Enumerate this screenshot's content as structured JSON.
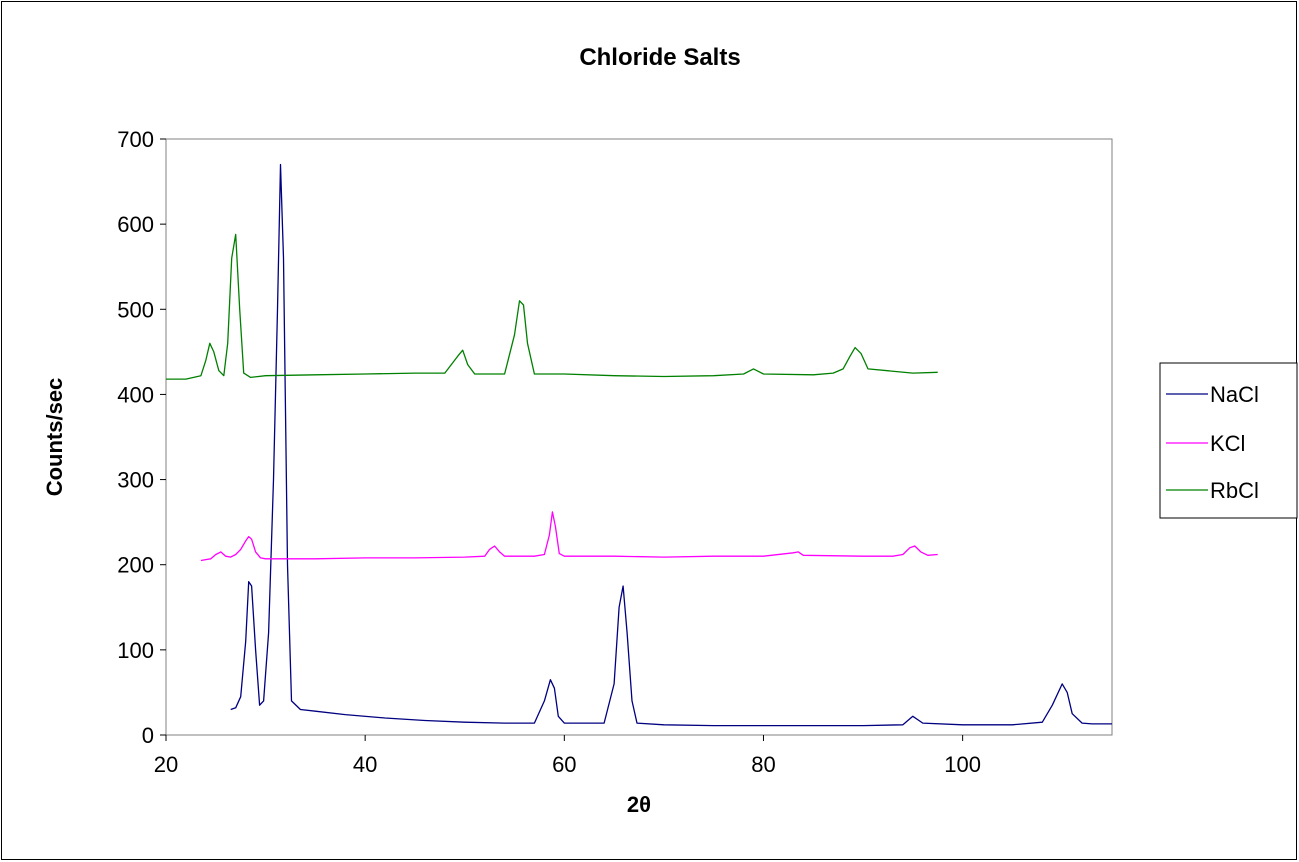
{
  "chart_data": {
    "type": "line",
    "title": "Chloride Salts",
    "xlabel": "2θ",
    "ylabel": "Counts/sec",
    "xlim": [
      20,
      115
    ],
    "ylim": [
      0,
      700
    ],
    "xticks": [
      20,
      40,
      60,
      80,
      100
    ],
    "xtick_labels": [
      "20",
      "40",
      "60",
      "80",
      "100"
    ],
    "yticks": [
      0,
      100,
      200,
      300,
      400,
      500,
      600,
      700
    ],
    "ytick_labels": [
      "0",
      "100",
      "200",
      "300",
      "400",
      "500",
      "600",
      "700"
    ],
    "grid": false,
    "legend_position": "right",
    "series": [
      {
        "name": "NaCl",
        "color": "#000080",
        "x": [
          26.5,
          27.0,
          27.5,
          28.0,
          28.3,
          28.6,
          29.0,
          29.4,
          29.8,
          30.3,
          30.8,
          31.2,
          31.5,
          31.8,
          32.2,
          32.6,
          33.5,
          35,
          38,
          42,
          46,
          50,
          54,
          57,
          58,
          58.6,
          59.0,
          59.4,
          60,
          62,
          64,
          65.0,
          65.5,
          65.9,
          66.3,
          66.8,
          67.3,
          70,
          75,
          80,
          85,
          90,
          94,
          95,
          96,
          100,
          105,
          108,
          109,
          110,
          110.5,
          111,
          112,
          113,
          115
        ],
        "y": [
          30,
          32,
          45,
          110,
          180,
          175,
          100,
          35,
          40,
          120,
          300,
          500,
          670,
          560,
          200,
          40,
          30,
          28,
          24,
          20,
          17,
          15,
          14,
          14,
          40,
          65,
          55,
          22,
          14,
          14,
          14,
          60,
          150,
          175,
          120,
          40,
          14,
          12,
          11,
          11,
          11,
          11,
          12,
          22,
          14,
          12,
          12,
          15,
          35,
          60,
          50,
          25,
          14,
          13,
          13
        ]
      },
      {
        "name": "KCl",
        "color": "#FF00FF",
        "x": [
          23.5,
          24,
          24.5,
          25,
          25.5,
          26,
          26.5,
          27,
          27.5,
          28,
          28.3,
          28.6,
          29,
          29.5,
          30,
          35,
          40,
          45,
          50,
          52,
          52.5,
          53,
          53.5,
          54,
          57,
          58,
          58.5,
          58.8,
          59.1,
          59.5,
          60,
          65,
          70,
          75,
          80,
          83,
          83.5,
          84,
          90,
          93,
          94,
          94.7,
          95.2,
          95.8,
          96.5,
          97.5
        ],
        "y": [
          205,
          206,
          207,
          212,
          215,
          210,
          209,
          212,
          218,
          228,
          233,
          230,
          215,
          208,
          207,
          207,
          208,
          208,
          209,
          210,
          218,
          222,
          215,
          210,
          210,
          212,
          235,
          262,
          245,
          213,
          210,
          210,
          209,
          210,
          210,
          214,
          215,
          211,
          210,
          210,
          212,
          220,
          222,
          215,
          211,
          212
        ]
      },
      {
        "name": "RbCl",
        "color": "#008000",
        "x": [
          20,
          22,
          23.5,
          24.0,
          24.4,
          24.8,
          25.3,
          25.8,
          26.2,
          26.6,
          27.0,
          27.4,
          27.8,
          28.5,
          30,
          35,
          40,
          45,
          48,
          49.3,
          49.8,
          50.3,
          51,
          54,
          55.0,
          55.5,
          55.9,
          56.3,
          57,
          60,
          65,
          70,
          75,
          78,
          79,
          80,
          85,
          87,
          88,
          88.7,
          89.2,
          89.8,
          90.5,
          95,
          97.5
        ],
        "y": [
          418,
          418,
          422,
          440,
          460,
          450,
          428,
          422,
          460,
          560,
          588,
          500,
          425,
          420,
          422,
          423,
          424,
          425,
          425,
          445,
          452,
          435,
          424,
          424,
          470,
          510,
          505,
          460,
          424,
          424,
          422,
          421,
          422,
          424,
          430,
          424,
          423,
          425,
          430,
          445,
          455,
          448,
          430,
          425,
          426
        ]
      }
    ]
  },
  "legend": {
    "items": [
      "NaCl",
      "KCl",
      "RbCl"
    ]
  }
}
